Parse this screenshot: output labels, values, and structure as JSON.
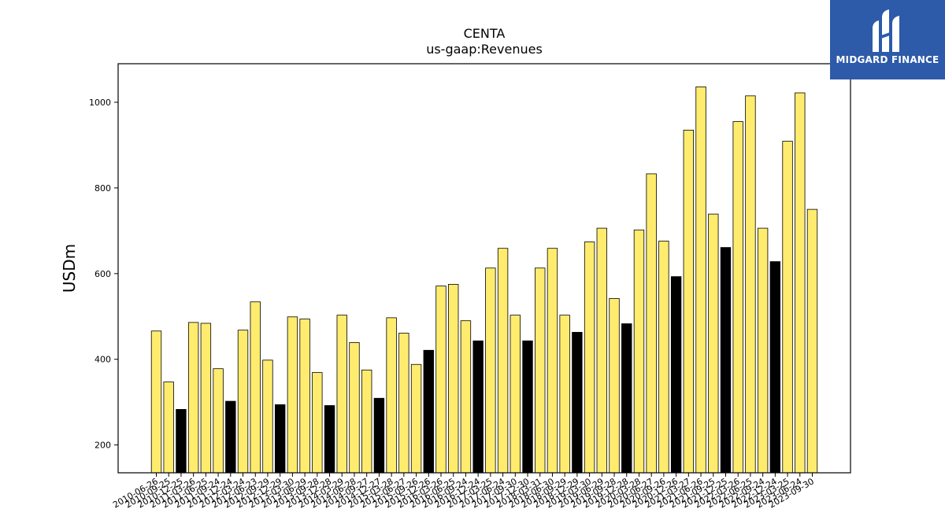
{
  "chart_data": {
    "type": "bar",
    "title": "CENTA",
    "subtitle": "us-gaap:Revenues",
    "ylabel": "USDm",
    "ylim": [
      135,
      1090
    ],
    "yticks": [
      200,
      400,
      600,
      800,
      1000
    ],
    "grid": false,
    "colors": {
      "quarter": "#ffec6e",
      "fiscal_q4": "#000000",
      "edge": "#000000"
    },
    "categories": [
      "2010-06-26",
      "2010-09-25",
      "2010-12-25",
      "2011-03-26",
      "2011-06-25",
      "2011-09-24",
      "2011-12-24",
      "2012-03-24",
      "2012-06-23",
      "2012-09-29",
      "2012-12-29",
      "2013-03-30",
      "2013-06-29",
      "2013-09-28",
      "2013-12-28",
      "2014-03-29",
      "2014-06-28",
      "2014-09-27",
      "2014-12-27",
      "2015-03-28",
      "2015-06-27",
      "2015-09-26",
      "2015-12-26",
      "2016-03-26",
      "2016-06-25",
      "2016-09-24",
      "2016-12-24",
      "2017-03-25",
      "2017-06-24",
      "2017-09-30",
      "2017-12-30",
      "2018-03-31",
      "2018-06-30",
      "2018-09-29",
      "2018-12-29",
      "2019-03-30",
      "2019-06-29",
      "2019-09-28",
      "2019-12-28",
      "2020-03-28",
      "2020-06-27",
      "2020-09-26",
      "2020-12-26",
      "2021-03-27",
      "2021-06-26",
      "2021-09-25",
      "2021-12-25",
      "2022-03-26",
      "2022-06-25",
      "2022-09-24",
      "2022-12-24",
      "2023-03-25",
      "2023-06-24",
      "2023-09-30"
    ],
    "values": [
      466,
      347,
      283,
      486,
      484,
      378,
      302,
      468,
      534,
      398,
      294,
      499,
      494,
      369,
      292,
      503,
      439,
      375,
      309,
      497,
      461,
      388,
      421,
      571,
      575,
      490,
      443,
      613,
      659,
      503,
      443,
      613,
      659,
      503,
      463,
      674,
      706,
      542,
      483,
      702,
      833,
      676,
      593,
      935,
      1036,
      739,
      661,
      955,
      1015,
      706,
      628,
      909,
      1022,
      750
    ],
    "fiscal_q4": [
      false,
      false,
      true,
      false,
      false,
      false,
      true,
      false,
      false,
      false,
      true,
      false,
      false,
      false,
      true,
      false,
      false,
      false,
      true,
      false,
      false,
      false,
      true,
      false,
      false,
      false,
      true,
      false,
      false,
      false,
      true,
      false,
      false,
      false,
      true,
      false,
      false,
      false,
      true,
      false,
      false,
      false,
      true,
      false,
      false,
      false,
      true,
      false,
      false,
      false,
      true,
      false,
      false,
      false
    ]
  },
  "branding": {
    "logo_text": "MIDGARD FINANCE",
    "logo_icon": "midgard-logo-icon"
  }
}
